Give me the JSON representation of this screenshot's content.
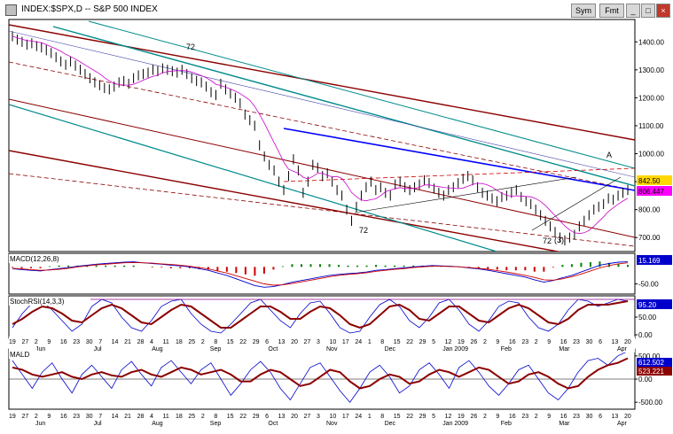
{
  "window": {
    "title": "INDEX:$SPX,D -- S&P 500 INDEX",
    "buttons": [
      "Sym",
      "Fmt"
    ]
  },
  "chart_data": {
    "type": "line",
    "title": "INDEX:$SPX,D -- S&P 500 INDEX",
    "panels": [
      {
        "name": "price",
        "ylim": [
          650,
          1480
        ],
        "yticks": [
          700,
          800,
          900,
          1000,
          1100,
          1200,
          1300,
          1400
        ],
        "series": [
          {
            "values": [
              1420,
              1408,
              1400,
              1390,
              1395,
              1385,
              1380,
              1370,
              1360,
              1345,
              1330,
              1318,
              1330,
              1315,
              1300,
              1285,
              1270,
              1255,
              1245,
              1235,
              1230,
              1240,
              1255,
              1260,
              1250,
              1270,
              1280,
              1285,
              1290,
              1300,
              1295,
              1305,
              1300,
              1295,
              1290,
              1300,
              1285,
              1270,
              1260,
              1255,
              1240,
              1220,
              1210,
              1250,
              1230,
              1215,
              1200,
              1180,
              1140,
              1120,
              1100,
              1030,
              990,
              960,
              940,
              900,
              870,
              920,
              980,
              940,
              860,
              900,
              960,
              950,
              920,
              930,
              900,
              870,
              850,
              800,
              760,
              810,
              850,
              880,
              900,
              870,
              880,
              860,
              850,
              890,
              900,
              880,
              870,
              880,
              890,
              905,
              895,
              875,
              860,
              850,
              870,
              880,
              895,
              910,
              920,
              905,
              880,
              860,
              850,
              840,
              830,
              845,
              850,
              860,
              870,
              845,
              830,
              820,
              800,
              780,
              760,
              740,
              720,
              700,
              690,
              700,
              710,
              740,
              760,
              780,
              800,
              810,
              820,
              840,
              835,
              850,
              860,
              870
            ]
          }
        ],
        "value_labels": [
          "842.50",
          "806.447"
        ],
        "annotations": [
          "72",
          "72",
          "72",
          "(3)",
          "A"
        ]
      },
      {
        "name": "MACD(12,26,8)",
        "ylim": [
          -80,
          40
        ],
        "yticks": [
          -50
        ],
        "value_label": "15.169",
        "series": [
          {
            "name": "MACD",
            "values": [
              -5,
              -8,
              -10,
              -12,
              -8,
              -5,
              -2,
              2,
              5,
              8,
              10,
              12,
              14,
              15,
              12,
              10,
              8,
              5,
              3,
              0,
              -5,
              -10,
              -18,
              -25,
              -35,
              -45,
              -55,
              -60,
              -58,
              -52,
              -45,
              -40,
              -35,
              -30,
              -25,
              -22,
              -20,
              -18,
              -15,
              -10,
              -8,
              -5,
              -3,
              0,
              2,
              4,
              3,
              2,
              0,
              -3,
              -6,
              -10,
              -15,
              -20,
              -25,
              -30,
              -38,
              -45,
              -40,
              -32,
              -25,
              -15,
              -5,
              5,
              10,
              14,
              15
            ]
          },
          {
            "name": "Signal",
            "values": [
              -4,
              -6,
              -8,
              -10,
              -9,
              -7,
              -4,
              0,
              3,
              6,
              8,
              10,
              12,
              13,
              12,
              11,
              9,
              7,
              5,
              2,
              -2,
              -6,
              -12,
              -18,
              -26,
              -34,
              -42,
              -50,
              -54,
              -53,
              -49,
              -44,
              -39,
              -34,
              -29,
              -25,
              -22,
              -20,
              -17,
              -13,
              -10,
              -7,
              -5,
              -2,
              0,
              2,
              2,
              1,
              0,
              -2,
              -4,
              -7,
              -11,
              -15,
              -20,
              -25,
              -31,
              -38,
              -39,
              -35,
              -29,
              -21,
              -12,
              -3,
              4,
              9,
              12
            ]
          }
        ]
      },
      {
        "name": "StochRSI(14,3,3)",
        "ylim": [
          -10,
          110
        ],
        "yticks": [
          0,
          50
        ],
        "value_label": "95.20",
        "series": [
          {
            "values": [
              20,
              60,
              90,
              95,
              70,
              40,
              10,
              30,
              80,
              100,
              90,
              50,
              20,
              10,
              40,
              80,
              95,
              100,
              60,
              30,
              10,
              5,
              30,
              60,
              90,
              100,
              70,
              40,
              20,
              60,
              90,
              95,
              60,
              20,
              5,
              10,
              50,
              85,
              100,
              80,
              40,
              20,
              50,
              90,
              100,
              70,
              30,
              10,
              40,
              80,
              95,
              90,
              50,
              20,
              10,
              30,
              70,
              100,
              95,
              80,
              90,
              100,
              95
            ]
          },
          {
            "values": [
              30,
              45,
              65,
              80,
              75,
              60,
              40,
              35,
              55,
              75,
              85,
              75,
              55,
              35,
              30,
              50,
              70,
              85,
              80,
              60,
              40,
              20,
              20,
              40,
              60,
              80,
              80,
              65,
              45,
              45,
              65,
              80,
              75,
              55,
              30,
              20,
              30,
              55,
              80,
              85,
              70,
              45,
              40,
              60,
              80,
              80,
              60,
              40,
              35,
              55,
              75,
              85,
              75,
              55,
              35,
              30,
              45,
              70,
              85,
              85,
              85,
              90,
              95
            ]
          }
        ]
      },
      {
        "name": "MALD",
        "ylim": [
          -650,
          650
        ],
        "yticks": [
          500,
          0,
          -500
        ],
        "value_labels": [
          "612.502",
          "523.221"
        ],
        "series": [
          {
            "values": [
              400,
              100,
              -200,
              150,
              350,
              0,
              -300,
              100,
              300,
              50,
              -200,
              200,
              380,
              100,
              -150,
              250,
              400,
              150,
              -100,
              200,
              350,
              0,
              -350,
              -100,
              200,
              380,
              150,
              -200,
              -450,
              -100,
              250,
              350,
              50,
              -250,
              -500,
              -200,
              150,
              300,
              50,
              -300,
              -150,
              200,
              350,
              100,
              -200,
              250,
              400,
              150,
              -150,
              -350,
              -100,
              200,
              300,
              0,
              -300,
              -450,
              -200,
              150,
              400,
              450,
              300,
              500,
              600
            ]
          },
          {
            "values": [
              250,
              200,
              100,
              50,
              100,
              150,
              50,
              0,
              100,
              150,
              80,
              50,
              150,
              200,
              100,
              50,
              150,
              250,
              200,
              100,
              150,
              200,
              100,
              -50,
              -50,
              100,
              200,
              150,
              0,
              -150,
              -100,
              50,
              200,
              150,
              -50,
              -200,
              -150,
              0,
              100,
              50,
              -100,
              -50,
              100,
              200,
              150,
              50,
              150,
              250,
              200,
              50,
              -100,
              -50,
              100,
              150,
              50,
              -100,
              -200,
              -150,
              50,
              200,
              300,
              350,
              450
            ]
          }
        ]
      }
    ],
    "x_day_labels": [
      "19",
      "27",
      "2",
      "9",
      "16",
      "23",
      "30",
      "7",
      "14",
      "21",
      "28",
      "4",
      "11",
      "18",
      "25",
      "2",
      "8",
      "15",
      "22",
      "29",
      "6",
      "13",
      "20",
      "27",
      "3",
      "10",
      "17",
      "24",
      "1",
      "8",
      "15",
      "22",
      "29",
      "5",
      "12",
      "19",
      "26",
      "2",
      "9",
      "16",
      "23",
      "2",
      "9",
      "16",
      "23",
      "30",
      "6",
      "13",
      "20"
    ],
    "x_month_labels": [
      "Jun",
      "Jul",
      "Aug",
      "Sep",
      "Oct",
      "Nov",
      "Dec",
      "Jan 2009",
      "Feb",
      "Mar",
      "Apr"
    ]
  }
}
